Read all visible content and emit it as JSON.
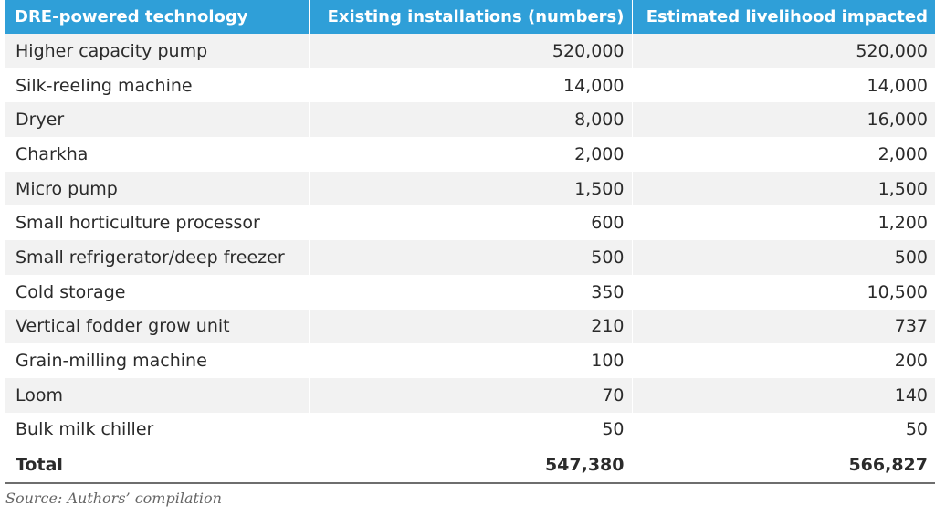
{
  "table": {
    "headers": [
      "DRE-powered technology",
      "Existing installations (numbers)",
      "Estimated livelihood impacted"
    ],
    "rows": [
      {
        "technology": "Higher capacity pump",
        "installations": "520,000",
        "livelihood": "520,000"
      },
      {
        "technology": "Silk-reeling machine",
        "installations": "14,000",
        "livelihood": "14,000"
      },
      {
        "technology": "Dryer",
        "installations": "8,000",
        "livelihood": "16,000"
      },
      {
        "technology": "Charkha",
        "installations": "2,000",
        "livelihood": "2,000"
      },
      {
        "technology": "Micro pump",
        "installations": "1,500",
        "livelihood": "1,500"
      },
      {
        "technology": "Small horticulture processor",
        "installations": "600",
        "livelihood": "1,200"
      },
      {
        "technology": "Small refrigerator/deep freezer",
        "installations": "500",
        "livelihood": "500"
      },
      {
        "technology": "Cold storage",
        "installations": "350",
        "livelihood": "10,500"
      },
      {
        "technology": "Vertical fodder grow unit",
        "installations": "210",
        "livelihood": "737"
      },
      {
        "technology": "Grain-milling machine",
        "installations": "100",
        "livelihood": "200"
      },
      {
        "technology": "Loom",
        "installations": "70",
        "livelihood": "140"
      },
      {
        "technology": "Bulk milk chiller",
        "installations": "50",
        "livelihood": "50"
      }
    ],
    "total": {
      "label": "Total",
      "installations": "547,380",
      "livelihood": "566,827"
    }
  },
  "source": "Source: Authors’ compilation",
  "colors": {
    "header_background": "#2f9fd8",
    "header_text": "#ffffff",
    "stripe": "#f2f2f2"
  }
}
